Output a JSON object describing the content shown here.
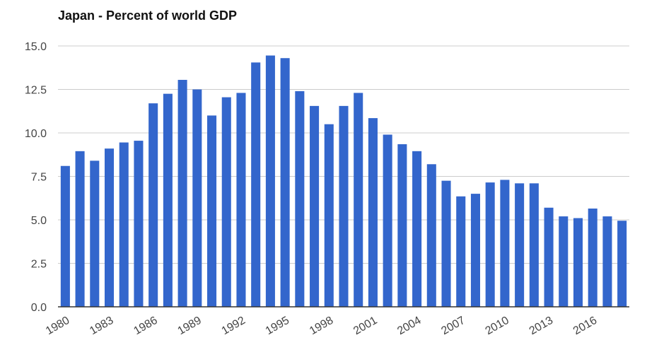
{
  "chart_data": {
    "type": "bar",
    "title": "Japan - Percent of world GDP",
    "xlabel": "",
    "ylabel": "",
    "categories": [
      "1980",
      "1981",
      "1982",
      "1983",
      "1984",
      "1985",
      "1986",
      "1987",
      "1988",
      "1989",
      "1990",
      "1991",
      "1992",
      "1993",
      "1994",
      "1995",
      "1996",
      "1997",
      "1998",
      "1999",
      "2000",
      "2001",
      "2002",
      "2003",
      "2004",
      "2005",
      "2006",
      "2007",
      "2008",
      "2009",
      "2010",
      "2011",
      "2012",
      "2013",
      "2014",
      "2015",
      "2016",
      "2017",
      "2018"
    ],
    "values": [
      8.1,
      8.95,
      8.4,
      9.1,
      9.45,
      9.55,
      11.7,
      12.25,
      13.05,
      12.5,
      11.0,
      12.05,
      12.3,
      14.05,
      14.45,
      14.3,
      12.4,
      11.55,
      10.5,
      11.55,
      12.3,
      10.85,
      9.9,
      9.35,
      8.95,
      8.2,
      7.25,
      6.35,
      6.5,
      7.15,
      7.3,
      7.1,
      7.1,
      5.7,
      5.2,
      5.1,
      5.65,
      5.2,
      4.95
    ],
    "x_tick_labels": [
      "1980",
      "1983",
      "1986",
      "1989",
      "1992",
      "1995",
      "1998",
      "2001",
      "2004",
      "2007",
      "2010",
      "2013",
      "2016"
    ],
    "y_ticks": [
      "0.0",
      "2.5",
      "5.0",
      "7.5",
      "10.0",
      "12.5",
      "15.0"
    ],
    "ylim": [
      0,
      15
    ],
    "grid": true,
    "bar_color": "#3366cc",
    "grid_color": "#cccccc",
    "axis_color": "#333333"
  }
}
